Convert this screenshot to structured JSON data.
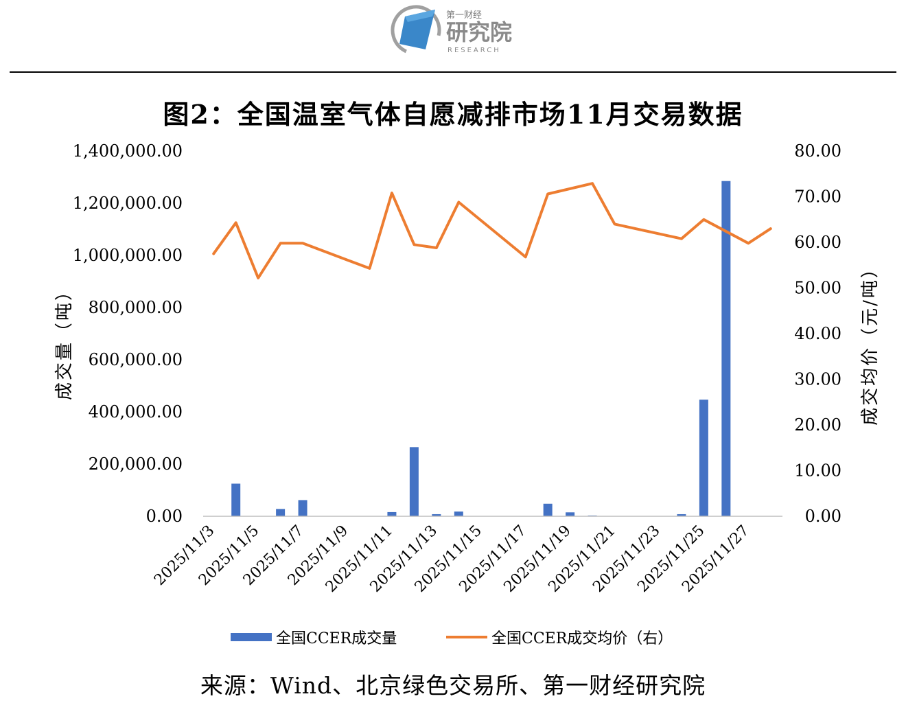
{
  "logo": {
    "top_text": "第一财经",
    "main_text": "研究院",
    "sub_text": "RESEARCH"
  },
  "title": "图2：全国温室气体自愿减排市场11月交易数据",
  "source": "来源：Wind、北京绿色交易所、第一财经研究院",
  "colors": {
    "bar": "#4472C4",
    "line": "#ED7D31",
    "axis": "#BFBFBF"
  },
  "chart_data": {
    "type": "bar+line",
    "title": "图2：全国温室气体自愿减排市场11月交易数据",
    "ylabel_left": "成交量（吨）",
    "ylabel_right": "成交均价（元/吨）",
    "ylim_left": [
      0,
      1400000
    ],
    "ylim_right": [
      0,
      80
    ],
    "yticks_left": [
      "1,400,000.00",
      "1,200,000.00",
      "1,000,000.00",
      "800,000.00",
      "600,000.00",
      "400,000.00",
      "200,000.00",
      "0.00"
    ],
    "yticks_right": [
      "80.00",
      "70.00",
      "60.00",
      "50.00",
      "40.00",
      "30.00",
      "20.00",
      "10.00",
      "0.00"
    ],
    "x_tick_labels": [
      "2025/11/3",
      "2025/11/5",
      "2025/11/7",
      "2025/11/9",
      "2025/11/11",
      "2025/11/13",
      "2025/11/15",
      "2025/11/17",
      "2025/11/19",
      "2025/11/21",
      "2025/11/23",
      "2025/11/25",
      "2025/11/27"
    ],
    "categories": [
      "2025/11/3",
      "2025/11/4",
      "2025/11/5",
      "2025/11/6",
      "2025/11/7",
      "2025/11/10",
      "2025/11/11",
      "2025/11/12",
      "2025/11/13",
      "2025/11/14",
      "2025/11/17",
      "2025/11/18",
      "2025/11/19",
      "2025/11/20",
      "2025/11/21",
      "2025/11/24",
      "2025/11/25",
      "2025/11/26",
      "2025/11/27",
      "2025/11/28"
    ],
    "series": [
      {
        "name": "全国CCER成交量",
        "type": "bar",
        "axis": "left",
        "values": [
          0,
          125000,
          0,
          28000,
          62000,
          0,
          16000,
          265000,
          8000,
          18000,
          0,
          48000,
          15000,
          3000,
          0,
          8000,
          447000,
          1285000,
          0,
          0
        ]
      },
      {
        "name": "全国CCER成交均价（右）",
        "type": "line",
        "axis": "right",
        "x": [
          "2025/11/3",
          "2025/11/4",
          "2025/11/5",
          "2025/11/6",
          "2025/11/7",
          "2025/11/10",
          "2025/11/11",
          "2025/11/12",
          "2025/11/13",
          "2025/11/14",
          "2025/11/17",
          "2025/11/18",
          "2025/11/20",
          "2025/11/21",
          "2025/11/24",
          "2025/11/25",
          "2025/11/27",
          "2025/11/28"
        ],
        "values": [
          57.5,
          64.3,
          52.2,
          59.8,
          59.8,
          54.3,
          70.8,
          59.5,
          58.8,
          68.8,
          56.8,
          70.6,
          72.9,
          64.0,
          60.8,
          65.0,
          59.8,
          63.0
        ]
      }
    ],
    "legend_position": "bottom",
    "grid": false
  }
}
